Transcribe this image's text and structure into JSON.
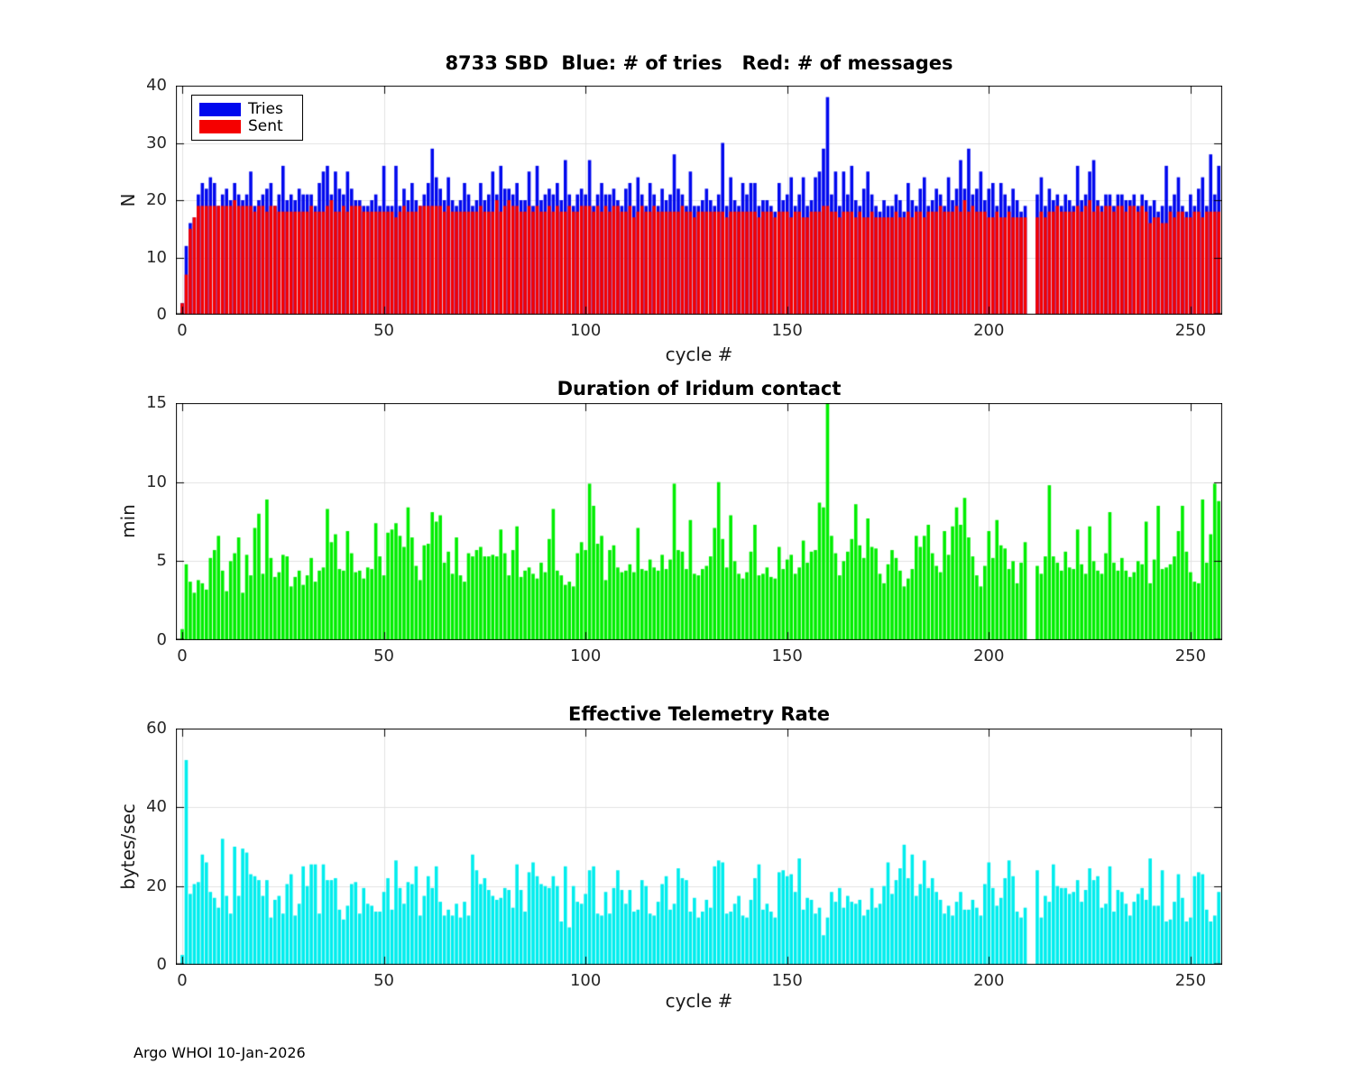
{
  "footer": "Argo WHOI 10-Jan-2026",
  "chart_data": [
    {
      "type": "bar",
      "title": "8733 SBD  Blue: # of tries   Red: # of messages",
      "xlabel": "cycle #",
      "ylabel": "N",
      "ylim": [
        0,
        40
      ],
      "xlim": [
        -2,
        258
      ],
      "yticks": [
        0,
        10,
        20,
        30,
        40
      ],
      "xticks": [
        0,
        50,
        100,
        150,
        200,
        250
      ],
      "grid": true,
      "legend_position": "top-left",
      "x_start": 0,
      "series": [
        {
          "name": "Tries",
          "color": "#0008ee",
          "values": [
            2,
            12,
            16,
            17,
            21,
            23,
            22,
            24,
            23,
            19,
            21,
            22,
            20,
            23,
            21,
            20,
            21,
            25,
            19,
            20,
            21,
            22,
            23,
            19,
            21,
            26,
            20,
            21,
            20,
            22,
            21,
            21,
            21,
            19,
            23,
            25,
            26,
            21,
            25,
            22,
            21,
            25,
            22,
            20,
            20,
            19,
            19,
            20,
            21,
            19,
            26,
            19,
            19,
            26,
            19,
            22,
            20,
            23,
            20,
            19,
            21,
            23,
            29,
            24,
            22,
            20,
            24,
            20,
            19,
            20,
            23,
            21,
            19,
            20,
            23,
            20,
            21,
            25,
            21,
            26,
            22,
            22,
            21,
            23,
            20,
            20,
            25,
            19,
            26,
            20,
            21,
            22,
            21,
            23,
            20,
            27,
            21,
            19,
            21,
            22,
            21,
            27,
            19,
            21,
            23,
            21,
            21,
            22,
            20,
            19,
            22,
            23,
            19,
            24,
            21,
            19,
            23,
            21,
            19,
            22,
            20,
            21,
            28,
            22,
            21,
            19,
            25,
            19,
            19,
            20,
            22,
            20,
            19,
            21,
            30,
            19,
            24,
            20,
            19,
            23,
            21,
            23,
            23,
            19,
            20,
            20,
            19,
            18,
            23,
            20,
            21,
            24,
            19,
            21,
            24,
            19,
            20,
            24,
            25,
            29,
            38,
            21,
            25,
            19,
            25,
            21,
            26,
            20,
            19,
            22,
            25,
            21,
            19,
            18,
            20,
            19,
            19,
            21,
            20,
            18,
            23,
            20,
            19,
            22,
            24,
            19,
            20,
            22,
            21,
            19,
            24,
            20,
            22,
            27,
            22,
            29,
            21,
            22,
            25,
            20,
            22,
            23,
            19,
            23,
            21,
            19,
            22,
            20,
            18,
            19,
            null,
            null,
            21,
            24,
            19,
            22,
            20,
            21,
            19,
            21,
            20,
            19,
            26,
            20,
            21,
            25,
            27,
            20,
            19,
            21,
            21,
            19,
            21,
            21,
            20,
            20,
            21,
            19,
            21,
            20,
            19,
            20,
            18,
            19,
            26,
            19,
            21,
            24,
            19,
            18,
            21,
            19,
            22,
            24,
            19,
            28,
            21,
            26
          ]
        },
        {
          "name": "Sent",
          "color": "#f50000",
          "values": [
            2,
            7,
            15,
            17,
            19,
            19,
            19,
            19,
            19,
            19,
            19,
            19,
            19,
            20,
            19,
            19,
            19,
            19,
            18,
            19,
            19,
            18,
            19,
            19,
            18,
            18,
            18,
            18,
            18,
            18,
            18,
            18,
            19,
            18,
            18,
            18,
            19,
            20,
            18,
            18,
            19,
            18,
            19,
            19,
            19,
            18,
            18,
            18,
            18,
            18,
            18,
            18,
            18,
            17,
            18,
            19,
            18,
            18,
            18,
            19,
            19,
            19,
            19,
            19,
            19,
            18,
            19,
            18,
            18,
            18,
            18,
            18,
            18,
            18,
            19,
            18,
            18,
            18,
            20,
            18,
            19,
            20,
            19,
            19,
            18,
            18,
            19,
            18,
            19,
            18,
            18,
            19,
            18,
            19,
            18,
            18,
            19,
            18,
            18,
            19,
            19,
            19,
            18,
            19,
            18,
            19,
            18,
            19,
            19,
            18,
            18,
            19,
            17,
            18,
            19,
            18,
            18,
            19,
            18,
            18,
            18,
            18,
            18,
            18,
            19,
            18,
            18,
            17,
            18,
            18,
            18,
            18,
            18,
            18,
            18,
            17,
            18,
            18,
            18,
            18,
            18,
            18,
            18,
            17,
            18,
            18,
            18,
            17,
            18,
            18,
            18,
            17,
            18,
            18,
            17,
            17,
            18,
            18,
            18,
            19,
            19,
            18,
            18,
            17,
            18,
            18,
            18,
            17,
            18,
            17,
            17,
            18,
            17,
            17,
            17,
            17,
            17,
            18,
            17,
            17,
            18,
            17,
            18,
            18,
            17,
            18,
            18,
            18,
            19,
            18,
            18,
            18,
            19,
            18,
            20,
            18,
            19,
            18,
            18,
            18,
            17,
            17,
            18,
            17,
            17,
            18,
            17,
            17,
            17,
            17,
            null,
            null,
            17,
            18,
            17,
            18,
            18,
            19,
            18,
            18,
            18,
            18,
            19,
            18,
            19,
            20,
            18,
            19,
            18,
            19,
            19,
            18,
            19,
            19,
            18,
            19,
            19,
            18,
            19,
            18,
            16,
            17,
            17,
            16,
            16,
            18,
            17,
            18,
            18,
            17,
            17,
            18,
            18,
            17,
            18,
            18,
            18,
            18
          ]
        }
      ]
    },
    {
      "type": "bar",
      "title": "Duration of Iridum contact",
      "xlabel": "",
      "ylabel": "min",
      "ylim": [
        0,
        15
      ],
      "xlim": [
        -2,
        258
      ],
      "yticks": [
        0,
        5,
        10,
        15
      ],
      "xticks": [
        0,
        50,
        100,
        150,
        200,
        250
      ],
      "grid": true,
      "x_start": 0,
      "series": [
        {
          "name": "Duration",
          "color": "#00ee00",
          "values": [
            0.7,
            4.8,
            3.7,
            3.0,
            3.8,
            3.6,
            3.2,
            5.2,
            5.7,
            6.6,
            4.4,
            3.1,
            5.0,
            5.5,
            6.5,
            3.0,
            5.4,
            4.1,
            7.1,
            8.0,
            4.2,
            8.9,
            5.2,
            4.0,
            4.3,
            5.4,
            5.3,
            3.4,
            4.0,
            4.4,
            3.5,
            4.1,
            5.2,
            3.7,
            4.4,
            4.6,
            8.3,
            6.2,
            6.7,
            4.5,
            4.4,
            6.9,
            5.5,
            4.3,
            4.4,
            3.9,
            4.6,
            4.5,
            7.4,
            5.3,
            4.1,
            6.8,
            7.0,
            7.4,
            6.6,
            5.9,
            8.4,
            6.5,
            4.7,
            3.8,
            6.0,
            6.1,
            8.1,
            7.5,
            7.9,
            4.9,
            5.6,
            4.2,
            6.5,
            4.1,
            3.7,
            5.5,
            5.3,
            5.7,
            5.9,
            5.3,
            5.3,
            5.4,
            5.3,
            7.0,
            5.5,
            4.1,
            5.7,
            7.2,
            4.0,
            4.4,
            4.6,
            4.2,
            3.9,
            4.9,
            4.3,
            6.4,
            8.3,
            4.4,
            4.1,
            3.5,
            3.7,
            3.4,
            5.5,
            6.2,
            5.7,
            9.9,
            8.5,
            6.1,
            6.6,
            3.8,
            5.7,
            6.0,
            4.6,
            4.3,
            4.4,
            4.8,
            4.3,
            7.1,
            4.5,
            4.4,
            5.1,
            4.6,
            4.4,
            5.4,
            4.5,
            5.1,
            9.9,
            5.7,
            5.6,
            4.5,
            7.6,
            4.2,
            4.1,
            4.5,
            4.7,
            5.3,
            7.1,
            10.0,
            6.4,
            4.6,
            7.9,
            5.0,
            4.2,
            3.9,
            4.3,
            5.6,
            7.3,
            4.1,
            4.2,
            4.6,
            4.0,
            3.9,
            5.9,
            4.5,
            5.1,
            5.4,
            4.2,
            4.6,
            6.3,
            4.9,
            5.6,
            5.7,
            8.7,
            8.4,
            15.0,
            6.6,
            5.5,
            4.1,
            5.0,
            5.6,
            6.4,
            8.6,
            6.0,
            5.2,
            7.7,
            5.9,
            5.8,
            4.2,
            3.6,
            4.8,
            5.7,
            5.2,
            4.4,
            3.4,
            3.9,
            4.5,
            6.6,
            5.9,
            6.6,
            7.3,
            5.5,
            4.7,
            4.3,
            6.9,
            5.4,
            7.2,
            8.4,
            7.3,
            9.0,
            6.5,
            5.3,
            4.1,
            3.4,
            4.7,
            6.9,
            5.2,
            7.6,
            6.0,
            5.8,
            4.5,
            5.0,
            3.6,
            4.9,
            6.2,
            null,
            null,
            4.7,
            4.2,
            5.3,
            9.8,
            5.3,
            4.9,
            4.4,
            5.6,
            4.6,
            4.5,
            7.0,
            4.8,
            4.2,
            7.2,
            5.0,
            4.4,
            4.2,
            5.5,
            8.1,
            4.9,
            4.4,
            5.2,
            4.4,
            4.0,
            4.3,
            5.0,
            4.8,
            7.5,
            3.6,
            5.1,
            8.5,
            4.5,
            4.6,
            4.8,
            5.3,
            6.9,
            8.5,
            5.6,
            4.3,
            3.7,
            3.6,
            8.9,
            4.9,
            6.7,
            9.9,
            8.8
          ]
        }
      ]
    },
    {
      "type": "bar",
      "title": "Effective Telemetry Rate",
      "xlabel": "cycle #",
      "ylabel": "bytes/sec",
      "ylim": [
        0,
        60
      ],
      "xlim": [
        -2,
        258
      ],
      "yticks": [
        0,
        20,
        40,
        60
      ],
      "xticks": [
        0,
        50,
        100,
        150,
        200,
        250
      ],
      "grid": true,
      "x_start": 0,
      "series": [
        {
          "name": "Rate",
          "color": "#00eded",
          "values": [
            2.5,
            52,
            18,
            20.5,
            21,
            28,
            26,
            18.5,
            17,
            14.5,
            32,
            17.5,
            13,
            30,
            17.5,
            29.5,
            28.5,
            23,
            22.5,
            21.5,
            17.5,
            21.5,
            12,
            16.5,
            17.5,
            13,
            20.5,
            23,
            12.5,
            15.5,
            25,
            20,
            25.5,
            25.5,
            13,
            25.5,
            21.5,
            21.5,
            22,
            14,
            11.5,
            15,
            20.5,
            21,
            13,
            19.5,
            15.5,
            15,
            13.5,
            13.5,
            18.5,
            22,
            14,
            26.5,
            19.5,
            15.5,
            21,
            20.5,
            25,
            12.5,
            17.5,
            22.5,
            19.5,
            25,
            16,
            12.5,
            14,
            12.5,
            15.5,
            12,
            16,
            12.5,
            28,
            24,
            20.5,
            22,
            19,
            17.5,
            16.5,
            17,
            19.5,
            19,
            14.5,
            25.5,
            19,
            13.5,
            23.5,
            26,
            22.5,
            20.5,
            20,
            19.5,
            22.5,
            20,
            11,
            25,
            9.5,
            20,
            16,
            15.5,
            18,
            24,
            25,
            13,
            12.5,
            18.5,
            13,
            19.5,
            24,
            19,
            15.5,
            19,
            13.5,
            14,
            21.5,
            20,
            13,
            12.5,
            16,
            20.5,
            22.5,
            14,
            15.5,
            24.5,
            22,
            21.5,
            13.5,
            17,
            12,
            13.5,
            16.5,
            14.5,
            25,
            26.5,
            26,
            13,
            13.5,
            15.5,
            17.5,
            12.5,
            12,
            16.5,
            22,
            25.5,
            14,
            15.5,
            13.5,
            12,
            23.5,
            24,
            22.5,
            23,
            18.5,
            27,
            14,
            17,
            16.5,
            13,
            14.5,
            7.5,
            12,
            18.5,
            16,
            19.5,
            14.5,
            17.5,
            16,
            15.5,
            16.5,
            12.5,
            14,
            19.5,
            14.5,
            15.5,
            20,
            26,
            18,
            21.5,
            24.5,
            30.5,
            22,
            28,
            17.5,
            20.5,
            26.5,
            19.5,
            22,
            18.5,
            16.5,
            13,
            15,
            12.5,
            16,
            18.5,
            14,
            14,
            16.5,
            14.5,
            12.5,
            20.5,
            26,
            19.5,
            15,
            17,
            22,
            26.5,
            22.5,
            13.5,
            12,
            14.5,
            null,
            null,
            24,
            12,
            17.5,
            16,
            25.5,
            20,
            19.5,
            19.5,
            18,
            18.5,
            21.5,
            16,
            19,
            24.5,
            21.5,
            22.5,
            14.5,
            15.5,
            25,
            13.5,
            19,
            18.5,
            15.5,
            12.5,
            16,
            18,
            19.5,
            16.5,
            27,
            15,
            15,
            24,
            11,
            11.5,
            16,
            23,
            17,
            11,
            12,
            22.5,
            23.5,
            23,
            14,
            11,
            12.5,
            18.5
          ]
        }
      ]
    }
  ]
}
